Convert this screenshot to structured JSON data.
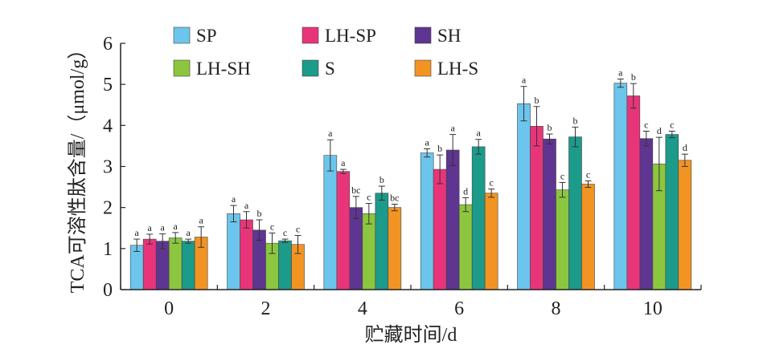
{
  "chart_data": {
    "type": "bar",
    "title": "",
    "xlabel": "贮藏时间/d",
    "ylabel": "TCA可溶性肽含量/（μmol/g）",
    "ylim": [
      0,
      6
    ],
    "yticks": [
      "0",
      "1",
      "2",
      "3",
      "4",
      "5",
      "6"
    ],
    "categories": [
      "0",
      "2",
      "4",
      "6",
      "8",
      "10"
    ],
    "legend_position": "top",
    "series": [
      {
        "name": "SP",
        "color": "#6cc5ec",
        "values": [
          1.08,
          1.85,
          3.27,
          3.33,
          4.53,
          5.03
        ],
        "errors": [
          0.15,
          0.2,
          0.38,
          0.1,
          0.42,
          0.1
        ],
        "labels": [
          "a",
          "a",
          "a",
          "a",
          "a",
          "a"
        ]
      },
      {
        "name": "LH-SP",
        "color": "#e8357a",
        "values": [
          1.23,
          1.7,
          2.88,
          2.93,
          3.98,
          4.72
        ],
        "errors": [
          0.12,
          0.2,
          0.05,
          0.35,
          0.48,
          0.3
        ],
        "labels": [
          "a",
          "a",
          "a",
          "b",
          "b",
          "b"
        ]
      },
      {
        "name": "SH",
        "color": "#5e3590",
        "values": [
          1.18,
          1.45,
          2.0,
          3.4,
          3.67,
          3.68
        ],
        "errors": [
          0.18,
          0.25,
          0.27,
          0.38,
          0.12,
          0.18
        ],
        "labels": [
          "a",
          "b",
          "bc",
          "a",
          "b",
          "c"
        ]
      },
      {
        "name": "LH-SH",
        "color": "#8cc63f",
        "values": [
          1.26,
          1.13,
          1.85,
          2.07,
          2.43,
          3.06
        ],
        "errors": [
          0.13,
          0.25,
          0.25,
          0.17,
          0.18,
          0.65
        ],
        "labels": [
          "a",
          "c",
          "c",
          "d",
          "c",
          "d"
        ]
      },
      {
        "name": "S",
        "color": "#1c9a8a",
        "values": [
          1.18,
          1.19,
          2.35,
          3.48,
          3.72,
          3.78
        ],
        "errors": [
          0.05,
          0.04,
          0.17,
          0.18,
          0.24,
          0.08
        ],
        "labels": [
          "a",
          "c",
          "b",
          "a",
          "b",
          "c"
        ]
      },
      {
        "name": "LH-S",
        "color": "#f29423",
        "values": [
          1.28,
          1.1,
          2.0,
          2.35,
          2.57,
          3.15
        ],
        "errors": [
          0.25,
          0.22,
          0.08,
          0.1,
          0.08,
          0.15
        ],
        "labels": [
          "a",
          "c",
          "bc",
          "c",
          "c",
          "d"
        ]
      }
    ]
  }
}
